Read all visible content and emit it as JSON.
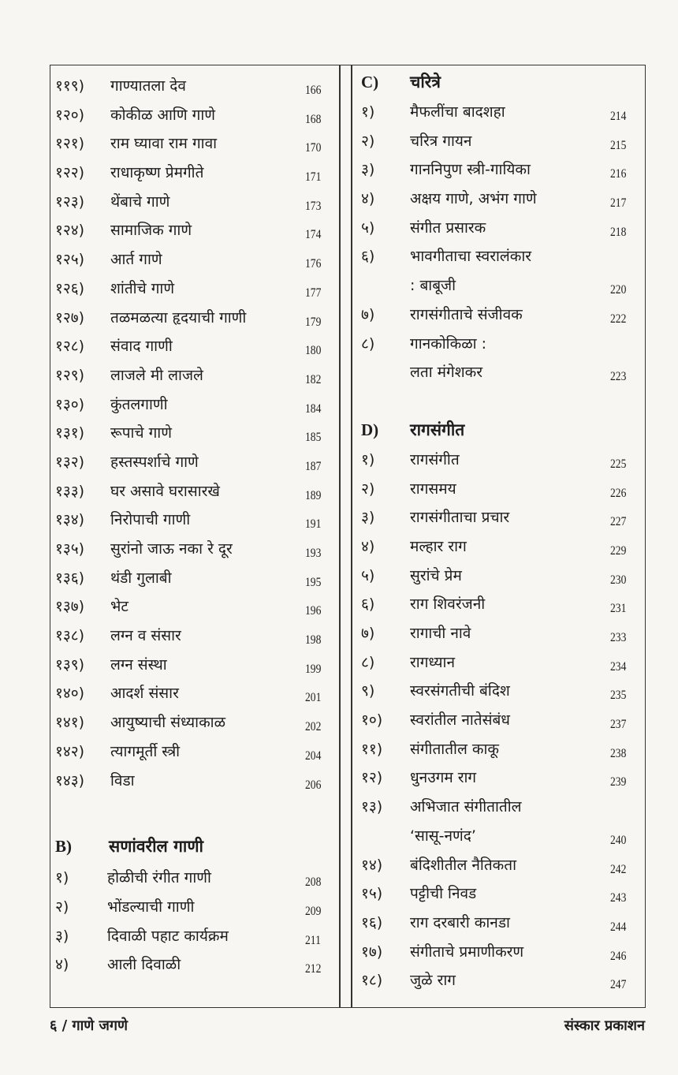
{
  "left_column": {
    "items": [
      {
        "num": "११९)",
        "title": "गाण्यातला देव",
        "page": "166"
      },
      {
        "num": "१२०)",
        "title": "कोकीळ आणि गाणे",
        "page": "168"
      },
      {
        "num": "१२१)",
        "title": "राम घ्यावा राम गावा",
        "page": "170"
      },
      {
        "num": "१२२)",
        "title": "राधाकृष्ण प्रेमगीते",
        "page": "171"
      },
      {
        "num": "१२३)",
        "title": "थेंबाचे गाणे",
        "page": "173"
      },
      {
        "num": "१२४)",
        "title": "सामाजिक गाणे",
        "page": "174"
      },
      {
        "num": "१२५)",
        "title": "आर्त गाणे",
        "page": "176"
      },
      {
        "num": "१२६)",
        "title": "शांतीचे गाणे",
        "page": "177"
      },
      {
        "num": "१२७)",
        "title": "तळमळत्या हृदयाची गाणी",
        "page": "179"
      },
      {
        "num": "१२८)",
        "title": "संवाद गाणी",
        "page": "180"
      },
      {
        "num": "१२९)",
        "title": "लाजले मी लाजले",
        "page": "182"
      },
      {
        "num": "१३०)",
        "title": "कुंतलगाणी",
        "page": "184"
      },
      {
        "num": "१३१)",
        "title": "रूपाचे गाणे",
        "page": "185"
      },
      {
        "num": "१३२)",
        "title": "हस्तस्पर्शाचे गाणे",
        "page": "187"
      },
      {
        "num": "१३३)",
        "title": "घर असावे घरासारखे",
        "page": "189"
      },
      {
        "num": "१३४)",
        "title": "निरोपाची गाणी",
        "page": "191"
      },
      {
        "num": "१३५)",
        "title": "सुरांनो जाऊ नका रे दूर",
        "page": "193"
      },
      {
        "num": "१३६)",
        "title": "थंडी गुलाबी",
        "page": "195"
      },
      {
        "num": "१३७)",
        "title": "भेट",
        "page": "196"
      },
      {
        "num": "१३८)",
        "title": "लग्न व संसार",
        "page": "198"
      },
      {
        "num": "१३९)",
        "title": "लग्न संस्था",
        "page": "199"
      },
      {
        "num": "१४०)",
        "title": "आदर्श संसार",
        "page": "201"
      },
      {
        "num": "१४१)",
        "title": "आयुष्याची संध्याकाळ",
        "page": "202"
      },
      {
        "num": "१४२)",
        "title": "त्यागमूर्ती स्त्री",
        "page": "204"
      },
      {
        "num": "१४३)",
        "title": "विडा",
        "page": "206"
      }
    ],
    "section_b": {
      "letter": "B)",
      "title": "सणांवरील गाणी",
      "items": [
        {
          "num": "१)",
          "title": "होळीची रंगीत गाणी",
          "page": "208"
        },
        {
          "num": "२)",
          "title": "भोंडल्याची गाणी",
          "page": "209"
        },
        {
          "num": "३)",
          "title": "दिवाळी पहाट कार्यक्रम",
          "page": "211"
        },
        {
          "num": "४)",
          "title": "आली दिवाळी",
          "page": "212"
        }
      ]
    }
  },
  "right_column": {
    "section_c": {
      "letter": "C)",
      "title": "चरित्रे",
      "items": [
        {
          "num": "१)",
          "title": "मैफलींचा बादशहा",
          "page": "214"
        },
        {
          "num": "२)",
          "title": "चरित्र गायन",
          "page": "215"
        },
        {
          "num": "३)",
          "title": "गाननिपुण स्त्री-गायिका",
          "page": "216"
        },
        {
          "num": "४)",
          "title": "अक्षय गाणे, अभंग गाणे",
          "page": "217"
        },
        {
          "num": "५)",
          "title": "संगीत प्रसारक",
          "page": "218"
        },
        {
          "num": "६)",
          "title": "भावगीताचा स्वरालंकार",
          "page": ""
        },
        {
          "num": "",
          "title": ": बाबूजी",
          "page": "220"
        },
        {
          "num": "७)",
          "title": "रागसंगीताचे संजीवक",
          "page": "222"
        },
        {
          "num": "८)",
          "title": "गानकोकिळा :",
          "page": ""
        },
        {
          "num": "",
          "title": "लता मंगेशकर",
          "page": "223"
        }
      ]
    },
    "section_d": {
      "letter": "D)",
      "title": "रागसंगीत",
      "items": [
        {
          "num": "१)",
          "title": "रागसंगीत",
          "page": "225"
        },
        {
          "num": "२)",
          "title": "रागसमय",
          "page": "226"
        },
        {
          "num": "३)",
          "title": "रागसंगीताचा प्रचार",
          "page": "227"
        },
        {
          "num": "४)",
          "title": "मल्हार राग",
          "page": "229"
        },
        {
          "num": "५)",
          "title": "सुरांचे प्रेम",
          "page": "230"
        },
        {
          "num": "६)",
          "title": "राग शिवरंजनी",
          "page": "231"
        },
        {
          "num": "७)",
          "title": "रागाची नावे",
          "page": "233"
        },
        {
          "num": "८)",
          "title": "रागध्यान",
          "page": "234"
        },
        {
          "num": "९)",
          "title": "स्वरसंगतीची बंदिश",
          "page": "235"
        },
        {
          "num": "१०)",
          "title": "स्वरांतील नातेसंबंध",
          "page": "237"
        },
        {
          "num": "११)",
          "title": "संगीतातील काकू",
          "page": "238"
        },
        {
          "num": "१२)",
          "title": "धुनउगम राग",
          "page": "239"
        },
        {
          "num": "१३)",
          "title": "अभिजात संगीतातील",
          "page": ""
        },
        {
          "num": "",
          "title": "‘सासू-नणंद’",
          "page": "240"
        },
        {
          "num": "१४)",
          "title": "बंदिशीतील नैतिकता",
          "page": "242"
        },
        {
          "num": "१५)",
          "title": "पट्टीची निवड",
          "page": "243"
        },
        {
          "num": "१६)",
          "title": "राग दरबारी कानडा",
          "page": "244"
        },
        {
          "num": "१७)",
          "title": "संगीताचे प्रमाणीकरण",
          "page": "246"
        },
        {
          "num": "१८)",
          "title": "जुळे राग",
          "page": "247"
        }
      ]
    }
  },
  "footer": {
    "left": "६ / गाणे जगणे",
    "right": "संस्कार प्रकाशन"
  }
}
